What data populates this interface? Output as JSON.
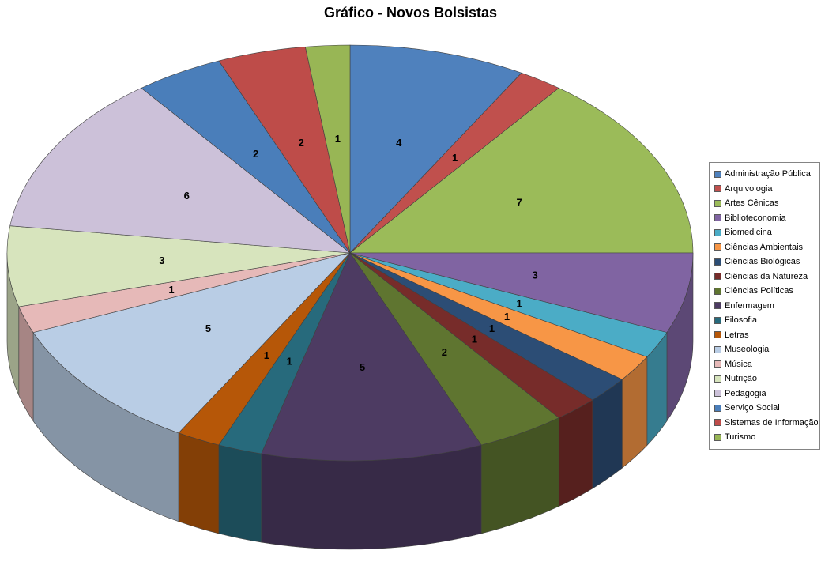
{
  "chart_data": {
    "type": "pie",
    "style": "3d-pie",
    "title": "Gráfico - Novos Bolsistas",
    "legend_position": "right",
    "data_labels": "value",
    "start_angle_deg": -90,
    "direction": "clockwise",
    "total": 48,
    "categories": [
      "Administração Pública",
      "Arquivologia",
      "Artes Cênicas",
      "Biblioteconomia",
      "Biomedicina",
      "Ciências Ambientais",
      "Ciências Biológicas",
      "Ciências da Natureza",
      "Ciências Políticas",
      "Enfermagem",
      "Filosofia",
      "Letras",
      "Museologia",
      "Música",
      "Nutrição",
      "Pedagogia",
      "Serviço Social",
      "Sistemas de Informação",
      "Turismo"
    ],
    "values": [
      4,
      1,
      7,
      3,
      1,
      1,
      1,
      1,
      2,
      5,
      1,
      1,
      5,
      1,
      3,
      6,
      2,
      2,
      1
    ],
    "colors": [
      "#4F81BD",
      "#C0504D",
      "#9BBB59",
      "#8064A2",
      "#4BACC6",
      "#F79646",
      "#2C4D75",
      "#772C2A",
      "#5F7530",
      "#4D3B62",
      "#276A7C",
      "#B65708",
      "#B9CDE5",
      "#E6B9B8",
      "#D7E4BD",
      "#CCC1D9",
      "#4A7EBA",
      "#BE4C49",
      "#98B655"
    ]
  }
}
